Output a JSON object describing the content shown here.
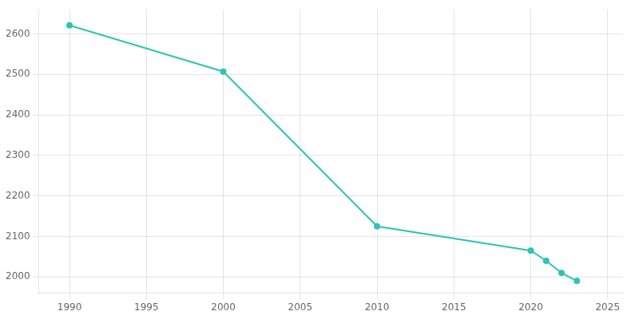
{
  "chart_data": {
    "type": "line",
    "x": [
      1990,
      2000,
      2010,
      2020,
      2021,
      2022,
      2023
    ],
    "values": [
      2621,
      2507,
      2125,
      2065,
      2040,
      2010,
      1990
    ],
    "color": "#2ec4b6",
    "marker": "circle",
    "xlim": [
      1988,
      2026
    ],
    "ylim": [
      1960,
      2660
    ],
    "xticks": [
      1990,
      1995,
      2000,
      2005,
      2010,
      2015,
      2020,
      2025
    ],
    "yticks": [
      2000,
      2100,
      2200,
      2300,
      2400,
      2500,
      2600
    ],
    "grid": true
  }
}
